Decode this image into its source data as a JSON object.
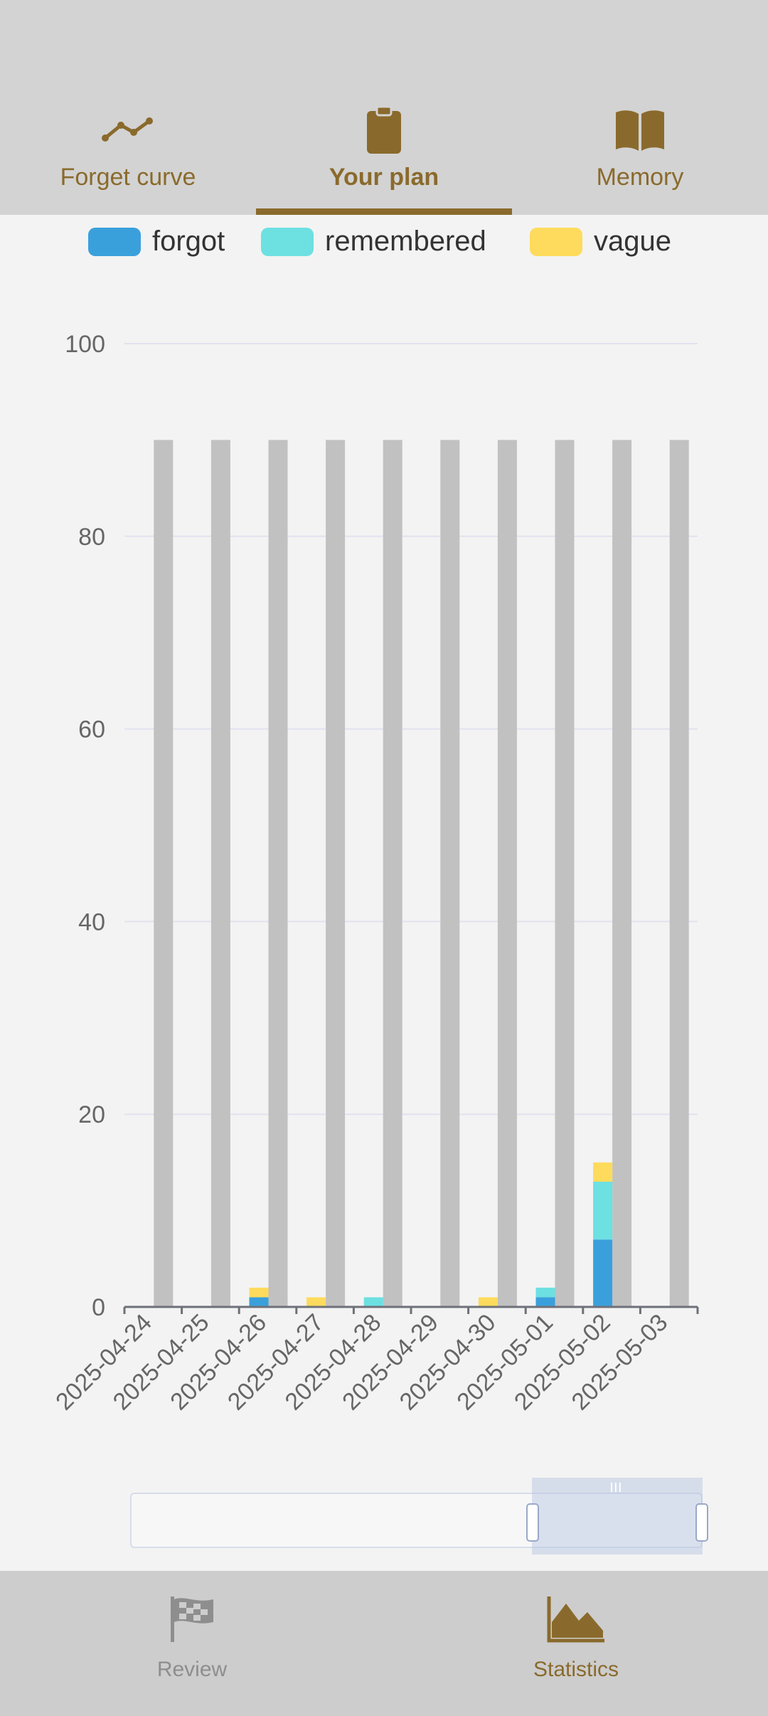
{
  "tabs": [
    {
      "label": "Forget curve",
      "icon": "line-chart-icon",
      "active": false
    },
    {
      "label": "Your plan",
      "icon": "clipboard-icon",
      "active": true
    },
    {
      "label": "Memory",
      "icon": "book-icon",
      "active": false
    }
  ],
  "legend": [
    {
      "label": "forgot",
      "color": "#3aa0dc"
    },
    {
      "label": "remembered",
      "color": "#6de0e2"
    },
    {
      "label": "vague",
      "color": "#fedb5c"
    }
  ],
  "chart_data": {
    "type": "bar",
    "stacked": true,
    "categories": [
      "2025-04-24",
      "2025-04-25",
      "2025-04-26",
      "2025-04-27",
      "2025-04-28",
      "2025-04-29",
      "2025-04-30",
      "2025-05-01",
      "2025-05-02",
      "2025-05-03"
    ],
    "background_bar_value": 90,
    "series": [
      {
        "name": "forgot",
        "color": "#3aa0dc",
        "values": [
          0,
          0,
          1,
          0,
          0,
          0,
          0,
          1,
          7,
          0
        ]
      },
      {
        "name": "remembered",
        "color": "#6de0e2",
        "values": [
          0,
          0,
          0,
          0,
          1,
          0,
          0,
          1,
          6,
          0
        ]
      },
      {
        "name": "vague",
        "color": "#fedb5c",
        "values": [
          0,
          0,
          1,
          1,
          0,
          0,
          1,
          0,
          2,
          0
        ]
      }
    ],
    "ylim": [
      0,
      100
    ],
    "yticks": [
      0,
      20,
      40,
      60,
      80,
      100
    ],
    "grid": true,
    "legend_position": "top"
  },
  "bottom_nav": [
    {
      "label": "Review",
      "icon": "flag-icon",
      "active": false
    },
    {
      "label": "Statistics",
      "icon": "area-chart-icon",
      "active": true
    }
  ],
  "colors": {
    "accent": "#8a6a2c",
    "inactive": "#8e8e8e",
    "background_bar": "#c1c1c1",
    "grid": "#e2e2f0"
  }
}
